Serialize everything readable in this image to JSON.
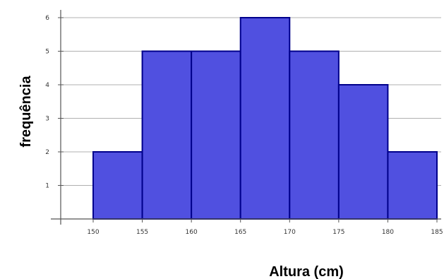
{
  "chart_data": {
    "type": "bar",
    "subtype": "histogram",
    "bins": [
      {
        "start": 150,
        "end": 155,
        "value": 2
      },
      {
        "start": 155,
        "end": 160,
        "value": 5
      },
      {
        "start": 160,
        "end": 165,
        "value": 5
      },
      {
        "start": 165,
        "end": 170,
        "value": 6
      },
      {
        "start": 170,
        "end": 175,
        "value": 5
      },
      {
        "start": 175,
        "end": 180,
        "value": 4
      },
      {
        "start": 180,
        "end": 185,
        "value": 2
      }
    ],
    "x_ticks": [
      150,
      155,
      160,
      165,
      170,
      175,
      180,
      185
    ],
    "y_ticks": [
      1,
      2,
      3,
      4,
      5,
      6
    ],
    "xlabel": "Altura (cm)",
    "ylabel": "frequência",
    "xlim": [
      147,
      185
    ],
    "ylim": [
      0,
      6.2
    ],
    "grid": "horizontal",
    "bar_color": "#5050e0",
    "bar_edge_color": "#00008b"
  }
}
